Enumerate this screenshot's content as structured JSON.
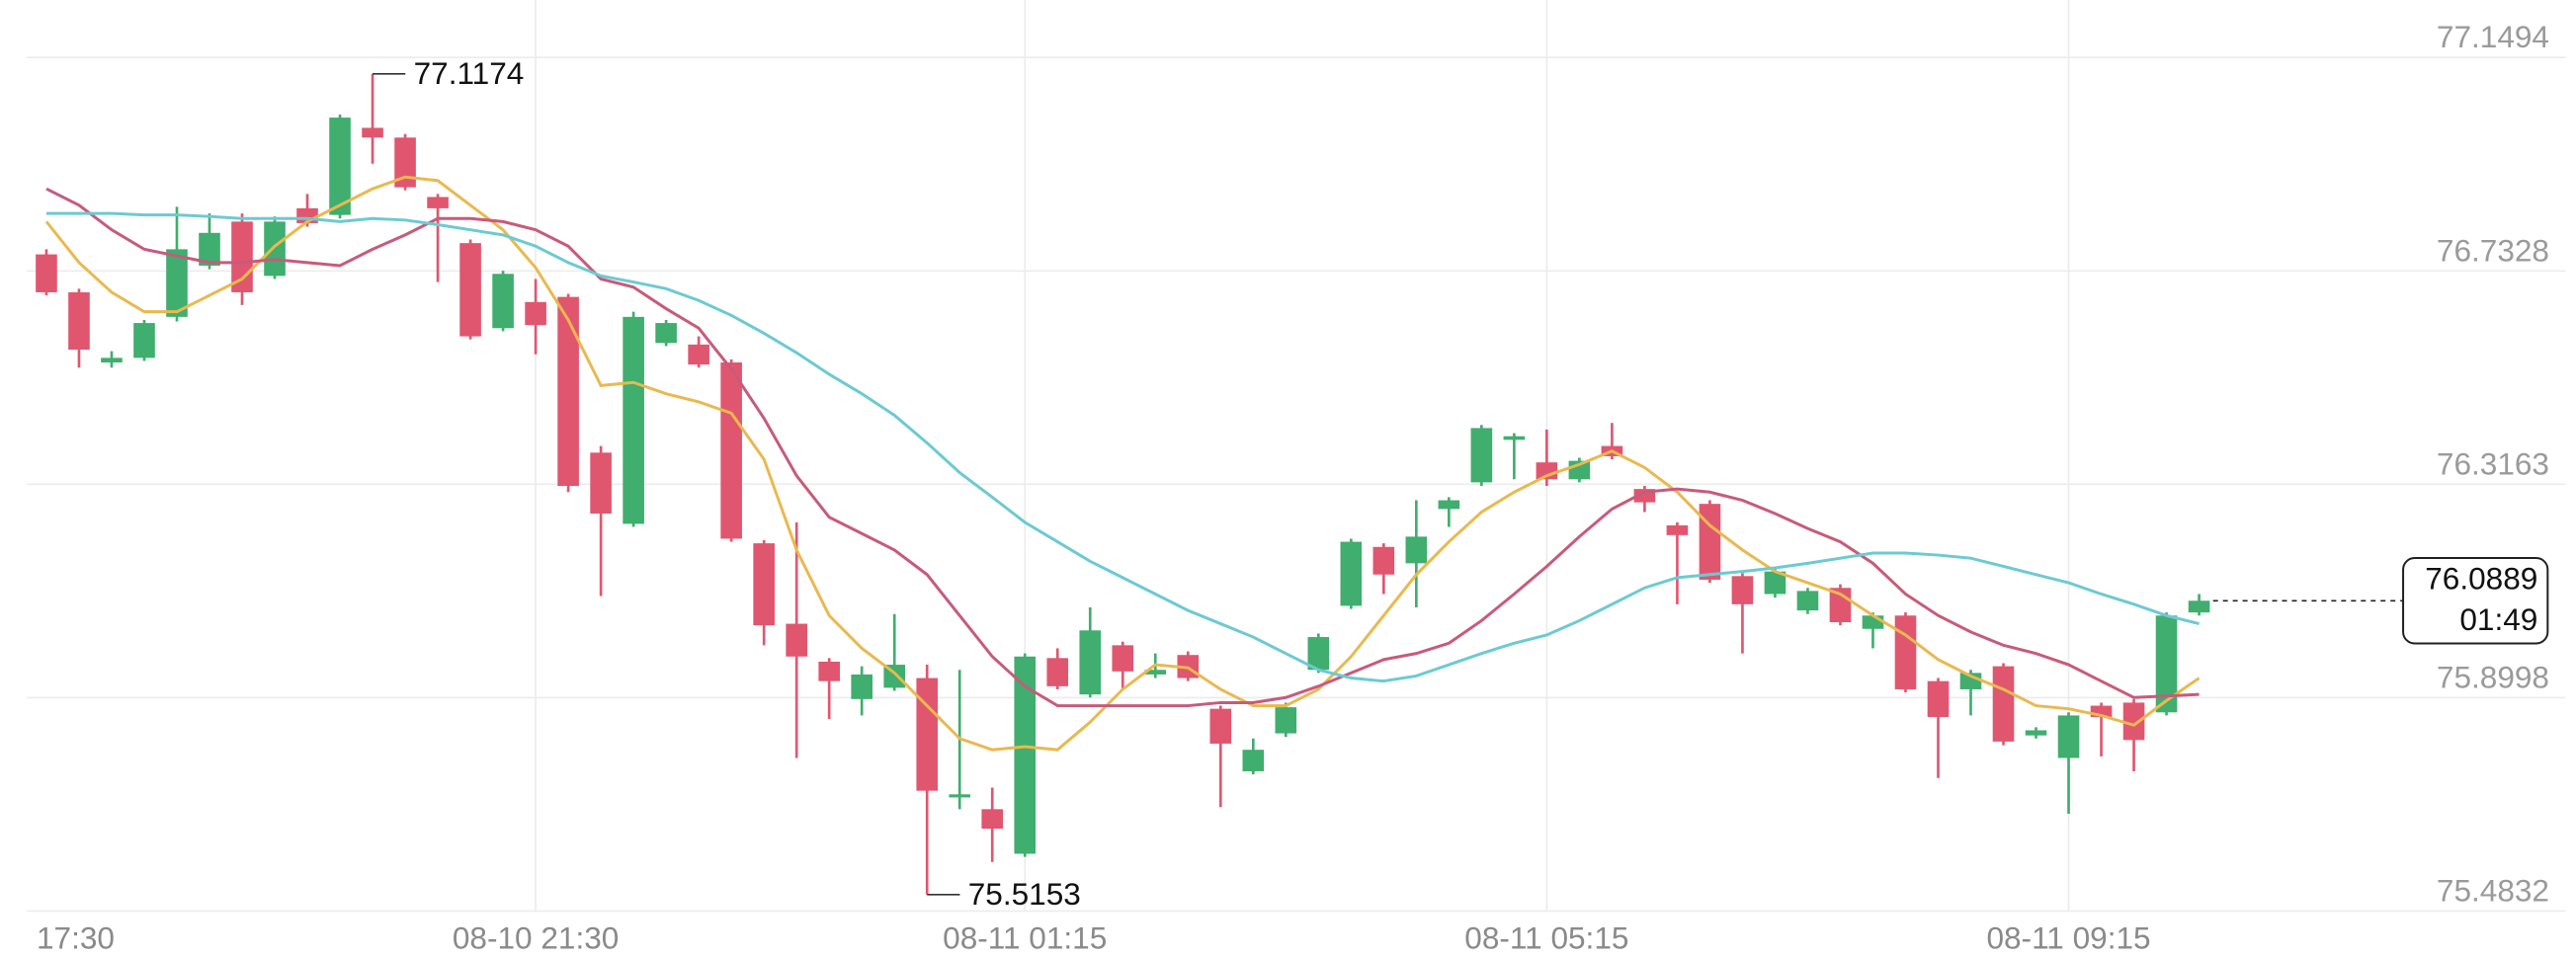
{
  "chart_data": {
    "type": "candlestick",
    "categories": [
      "17:30",
      null,
      null,
      null,
      null,
      null,
      null,
      null,
      null,
      null,
      null,
      null,
      null,
      null,
      null,
      "08-10 21:30",
      null,
      null,
      null,
      null,
      null,
      null,
      null,
      null,
      null,
      null,
      null,
      null,
      null,
      null,
      "08-11 01:15",
      null,
      null,
      null,
      null,
      null,
      null,
      null,
      null,
      null,
      null,
      null,
      null,
      null,
      null,
      null,
      "08-11 05:15",
      null,
      null,
      null,
      null,
      null,
      null,
      null,
      null,
      null,
      null,
      null,
      null,
      null,
      null,
      null,
      "08-11 09:15",
      null,
      null,
      null,
      null
    ],
    "open": [
      76.765,
      76.691,
      76.554,
      76.563,
      76.643,
      76.743,
      76.829,
      76.723,
      76.855,
      76.842,
      77.012,
      76.993,
      76.877,
      76.787,
      76.621,
      76.672,
      76.682,
      76.378,
      76.239,
      76.592,
      76.589,
      76.554,
      76.201,
      76.044,
      75.97,
      75.897,
      75.919,
      75.938,
      75.705,
      75.682,
      75.595,
      75.977,
      75.906,
      76.002,
      75.945,
      75.983,
      75.878,
      75.756,
      75.83,
      75.954,
      76.079,
      76.194,
      76.162,
      76.268,
      76.32,
      76.403,
      76.359,
      76.326,
      76.391,
      76.307,
      76.236,
      76.278,
      76.137,
      76.102,
      76.07,
      76.114,
      76.034,
      76.06,
      75.932,
      75.916,
      75.961,
      75.826,
      75.782,
      75.884,
      75.89,
      75.871,
      76.066
    ],
    "high": [
      76.775,
      76.698,
      76.576,
      76.637,
      76.858,
      76.845,
      76.845,
      76.839,
      76.883,
      77.038,
      77.1174,
      77.0,
      76.883,
      76.794,
      76.733,
      76.717,
      76.688,
      76.391,
      76.653,
      76.637,
      76.605,
      76.56,
      76.207,
      76.242,
      75.977,
      75.961,
      76.063,
      75.964,
      75.954,
      75.724,
      75.986,
      75.996,
      76.076,
      76.009,
      75.986,
      75.99,
      75.884,
      75.82,
      75.89,
      76.025,
      76.21,
      76.201,
      76.285,
      76.291,
      76.432,
      76.416,
      76.423,
      76.368,
      76.436,
      76.313,
      76.242,
      76.285,
      76.143,
      76.153,
      76.114,
      76.121,
      76.066,
      76.066,
      75.938,
      75.954,
      75.967,
      75.842,
      75.871,
      75.89,
      75.897,
      76.066,
      76.102
    ],
    "low": [
      76.685,
      76.544,
      76.544,
      76.557,
      76.634,
      76.736,
      76.666,
      76.717,
      76.819,
      76.835,
      76.942,
      76.89,
      76.711,
      76.599,
      76.615,
      76.57,
      76.301,
      76.098,
      76.233,
      76.586,
      76.544,
      76.204,
      76.002,
      75.782,
      75.858,
      75.865,
      75.913,
      75.5153,
      75.682,
      75.579,
      75.589,
      75.916,
      75.9,
      75.916,
      75.938,
      75.932,
      75.686,
      75.75,
      75.823,
      75.948,
      76.073,
      76.102,
      76.076,
      76.233,
      76.313,
      76.326,
      76.313,
      76.32,
      76.365,
      76.262,
      76.082,
      76.124,
      75.986,
      76.095,
      76.063,
      76.041,
      75.996,
      75.91,
      75.743,
      75.865,
      75.807,
      75.82,
      75.673,
      75.785,
      75.756,
      75.865,
      76.06
    ],
    "close": [
      76.691,
      76.579,
      76.563,
      76.631,
      76.775,
      76.807,
      76.691,
      76.829,
      76.826,
      77.032,
      76.993,
      76.896,
      76.855,
      76.605,
      76.727,
      76.627,
      76.313,
      76.259,
      76.643,
      76.631,
      76.55,
      76.21,
      76.041,
      75.98,
      75.932,
      75.945,
      75.964,
      75.718,
      75.711,
      75.644,
      75.98,
      75.922,
      76.031,
      75.951,
      75.954,
      75.938,
      75.81,
      75.798,
      75.881,
      76.018,
      76.204,
      76.14,
      76.214,
      76.285,
      76.426,
      76.41,
      76.326,
      76.362,
      76.371,
      76.281,
      76.217,
      76.13,
      76.082,
      76.146,
      76.108,
      76.047,
      76.06,
      75.916,
      75.862,
      75.948,
      75.814,
      75.836,
      75.865,
      75.862,
      75.817,
      76.06,
      76.0889
    ],
    "up_color": "#3fae6e",
    "down_color": "#e0566f",
    "lines": [
      {
        "color": "#e9b94f",
        "values": [
          76.829,
          76.749,
          76.691,
          76.653,
          76.653,
          76.685,
          76.717,
          76.781,
          76.829,
          76.861,
          76.893,
          76.916,
          76.909,
          76.861,
          76.813,
          76.739,
          76.637,
          76.509,
          76.515,
          76.493,
          76.477,
          76.455,
          76.365,
          76.188,
          76.06,
          75.996,
          75.948,
          75.884,
          75.82,
          75.798,
          75.804,
          75.798,
          75.852,
          75.916,
          75.964,
          75.958,
          75.916,
          75.884,
          75.884,
          75.916,
          75.98,
          76.06,
          76.14,
          76.204,
          76.262,
          76.301,
          76.333,
          76.355,
          76.381,
          76.349,
          76.301,
          76.236,
          76.188,
          76.146,
          76.124,
          76.102,
          76.06,
          76.022,
          75.974,
          75.942,
          75.916,
          75.884,
          75.878,
          75.865,
          75.846,
          75.894,
          75.938
        ]
      },
      {
        "color": "#c85a7c",
        "values": [
          76.893,
          76.861,
          76.813,
          76.775,
          76.762,
          76.749,
          76.749,
          76.755,
          76.749,
          76.743,
          76.775,
          76.803,
          76.835,
          76.835,
          76.829,
          76.813,
          76.781,
          76.717,
          76.701,
          76.659,
          76.621,
          76.541,
          76.445,
          76.333,
          76.252,
          76.22,
          76.188,
          76.14,
          76.06,
          75.98,
          75.922,
          75.884,
          75.884,
          75.884,
          75.884,
          75.884,
          75.89,
          75.89,
          75.9,
          75.922,
          75.948,
          75.974,
          75.986,
          76.006,
          76.05,
          76.102,
          76.156,
          76.214,
          76.268,
          76.301,
          76.307,
          76.301,
          76.285,
          76.259,
          76.23,
          76.204,
          76.162,
          76.102,
          76.06,
          76.028,
          76.002,
          75.986,
          75.964,
          75.932,
          75.9,
          75.903,
          75.906
        ]
      },
      {
        "color": "#6ccad2",
        "values": [
          76.845,
          76.845,
          76.845,
          76.842,
          76.842,
          76.839,
          76.835,
          76.835,
          76.835,
          76.829,
          76.835,
          76.832,
          76.823,
          76.813,
          76.803,
          76.781,
          76.749,
          76.723,
          76.711,
          76.698,
          76.675,
          76.646,
          76.611,
          76.573,
          76.531,
          76.493,
          76.451,
          76.397,
          76.339,
          76.291,
          76.242,
          76.204,
          76.166,
          76.134,
          76.102,
          76.07,
          76.044,
          76.018,
          75.986,
          75.954,
          75.938,
          75.932,
          75.942,
          75.964,
          75.986,
          76.006,
          76.022,
          76.05,
          76.082,
          76.114,
          76.134,
          76.14,
          76.146,
          76.153,
          76.162,
          76.172,
          76.182,
          76.182,
          76.178,
          76.172,
          76.156,
          76.14,
          76.124,
          76.102,
          76.082,
          76.06,
          76.044
        ]
      }
    ],
    "countdown": "01:49",
    "ylim": [
      75.4832,
      77.1494
    ],
    "yticks": [
      75.4832,
      75.8998,
      76.3163,
      76.7328,
      77.1494
    ],
    "grid": true
  }
}
